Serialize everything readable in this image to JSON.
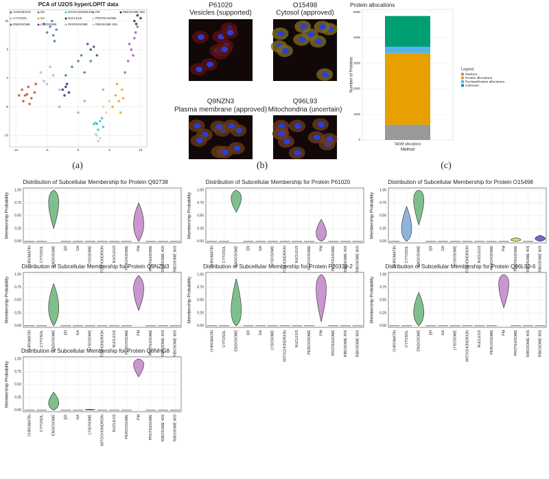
{
  "panel_labels": [
    "(a)",
    "(b)",
    "(c)"
  ],
  "micrographs": [
    {
      "protein": "P61020",
      "location": "Vesicles (supported)"
    },
    {
      "protein": "O15498",
      "location": "Cytosol (approved)"
    },
    {
      "protein": "Q9NZN3",
      "location": "Plasma membrane (approved)"
    },
    {
      "protein": "Q96L93",
      "location": "Mitochondria (uncertain)"
    }
  ],
  "chart_data": [
    {
      "type": "scatter",
      "title": "PCA of U2OS hyperLOPIT data",
      "xlim": [
        -11,
        11
      ],
      "ylim": [
        -12,
        12
      ],
      "xticks": [
        -10,
        -5,
        0,
        5,
        10
      ],
      "yticks": [
        -10,
        -5,
        0,
        5,
        10
      ],
      "grid": true,
      "series": [
        {
          "name": "CHROMATIN",
          "color": "#c0531e",
          "x": [
            -9,
            -8.5,
            -8,
            -7.5,
            -7,
            -8.8,
            -7.8,
            -6.8,
            -9.5,
            -8.2
          ],
          "y": [
            -2,
            -3,
            -1.5,
            -3.5,
            -2.5,
            -4,
            -4.5,
            -1,
            -3,
            -2.8
          ]
        },
        {
          "name": "CYTOSOL",
          "color": "#9fbbdc",
          "x": [
            -6,
            -5,
            -4,
            -3,
            -5.5,
            -4.5
          ],
          "y": [
            1,
            -1,
            0.5,
            -2,
            -0.5,
            2
          ]
        },
        {
          "name": "ENDOSOME",
          "color": "#2e8b57",
          "x": [
            -1,
            0,
            1,
            -2,
            0.5,
            2
          ],
          "y": [
            2,
            3,
            1,
            0.5,
            4,
            3
          ]
        },
        {
          "name": "ER",
          "color": "#3b7dbf",
          "x": [
            -5,
            -4.5,
            -4,
            -3.5,
            -5.5,
            -4.2,
            -3.8
          ],
          "y": [
            8,
            9,
            7.5,
            8.5,
            9.5,
            10,
            6.5
          ]
        },
        {
          "name": "GA",
          "color": "#f39c1f",
          "x": [
            6,
            6.5,
            7,
            5.5,
            6.8,
            7.2,
            6.2
          ],
          "y": [
            -3,
            -4,
            -2,
            -5,
            -6,
            -3.5,
            -1
          ]
        },
        {
          "name": "LYSOSOME",
          "color": "#5b3a8c",
          "x": [
            2,
            3,
            1.5,
            2.5
          ],
          "y": [
            5,
            4,
            6,
            5.5
          ]
        },
        {
          "name": "MITOCHONDRION",
          "color": "#2fc4d6",
          "x": [
            3,
            3.5,
            4,
            2.5,
            3.2,
            3.8,
            2.8
          ],
          "y": [
            -8,
            -7.5,
            -8.5,
            -8,
            -9,
            -7,
            -7.8
          ]
        },
        {
          "name": "NUCLEUS",
          "color": "#1f2b8c",
          "x": [
            -2.5,
            -2,
            -1.5,
            -2.2,
            -1.8
          ],
          "y": [
            -2,
            -1.5,
            -2.5,
            -3,
            -1
          ]
        },
        {
          "name": "PEROXISOME",
          "color": "#a8a8a8",
          "x": [
            -3,
            0,
            4,
            1
          ],
          "y": [
            -5,
            -6,
            -2,
            -4
          ]
        },
        {
          "name": "PM",
          "color": "#9b59b6",
          "x": [
            8,
            8.5,
            9,
            9.5,
            7.5,
            8.8,
            9.2,
            8.2
          ],
          "y": [
            3,
            5,
            7,
            9,
            1,
            4,
            8,
            6
          ]
        },
        {
          "name": "PROTEASOME",
          "color": "#f5c98a",
          "x": [
            4,
            5,
            4.5
          ],
          "y": [
            -5,
            -4,
            -6
          ]
        },
        {
          "name": "RIBOSOME 40S",
          "color": "#c8c8c8",
          "x": [
            3,
            3.5,
            2.8,
            3.2
          ],
          "y": [
            -10,
            -10.5,
            -9.8,
            -11
          ]
        },
        {
          "name": "RIBOSOME 60S",
          "color": "#333333",
          "x": [
            9,
            9.5,
            10,
            9.3
          ],
          "y": [
            10,
            11,
            10.5,
            9.5
          ]
        }
      ]
    },
    {
      "type": "stacked-bar",
      "title": "Protein allocations",
      "xlabel": "Method",
      "ylabel": "Number of Proteins",
      "legend_title": "Legend",
      "categories": [
        "TAGM allocations"
      ],
      "ylim": [
        0,
        5100
      ],
      "yticks": [
        0,
        1000,
        2000,
        3000,
        4000,
        5000
      ],
      "series": [
        {
          "name": "Markers",
          "color": "#999999",
          "values": [
            600
          ]
        },
        {
          "name": "Protein allocations",
          "color": "#e8a000",
          "values": [
            2800
          ]
        },
        {
          "name": "Reclassification allocations",
          "color": "#56b4e9",
          "values": [
            250
          ]
        },
        {
          "name": "Unknown",
          "color": "#009e73",
          "values": [
            1200
          ]
        }
      ]
    },
    {
      "type": "violin",
      "title": "Distribution of Subcellular Membership for Protein Q92738",
      "ylabel": "Membership Probability",
      "categories": [
        "CHROMATIN",
        "CYTOSOL",
        "ENDOSOME",
        "ER",
        "GA",
        "LYSOSOME",
        "MITOCHONDRION",
        "NUCLEUS",
        "PEROXISOME",
        "PM",
        "PROTEASOME",
        "RIBOSOME 40S",
        "RIBOSOME 60S"
      ],
      "ylim": [
        -0.03,
        1.04
      ],
      "yticks": [
        {
          "value": 0,
          "label": "0.00"
        },
        {
          "value": 0.25,
          "label": "0.25"
        },
        {
          "value": 0.5,
          "label": "0.50"
        },
        {
          "value": 0.75,
          "label": "0.75"
        },
        {
          "value": 1,
          "label": "1.00"
        }
      ],
      "min": [
        0,
        0,
        0.25,
        0,
        0,
        0,
        0,
        0,
        0,
        0,
        0,
        0,
        0
      ],
      "max": [
        0,
        0,
        1,
        0,
        0,
        0,
        0,
        0,
        0,
        0.75,
        0,
        0,
        0
      ],
      "mode": [
        0,
        0,
        0.9,
        0,
        0,
        0,
        0,
        0,
        0,
        0.3,
        0,
        0,
        0
      ],
      "colors": [
        null,
        null,
        "#7fbf8e",
        null,
        null,
        null,
        null,
        null,
        null,
        "#c996cf",
        null,
        null,
        null
      ]
    },
    {
      "type": "violin",
      "title": "Distribution of Subcellular Membership for Protein P61020",
      "ylabel": "Membership Probability",
      "categories": [
        "CHROMATIN",
        "CYTOSOL",
        "ENDOSOME",
        "ER",
        "GA",
        "LYSOSOME",
        "MITOCHONDRION",
        "NUCLEUS",
        "PEROXISOME",
        "PM",
        "PROTEASOME",
        "RIBOSOME 40S",
        "RIBOSOME 60S"
      ],
      "ylim": [
        -0.03,
        1.04
      ],
      "yticks": [
        {
          "value": 0,
          "label": "0.00"
        },
        {
          "value": 0.25,
          "label": "0.25"
        },
        {
          "value": 0.5,
          "label": "0.50"
        },
        {
          "value": 0.75,
          "label": "0.75"
        },
        {
          "value": 1,
          "label": "1.00"
        }
      ],
      "min": [
        0,
        0,
        0.57,
        0,
        0,
        0,
        0,
        0,
        0,
        0,
        0,
        0,
        0
      ],
      "max": [
        0,
        0,
        1,
        0,
        0,
        0,
        0,
        0,
        0,
        0.43,
        0,
        0,
        0
      ],
      "mode": [
        0,
        0,
        0.9,
        0,
        0,
        0,
        0,
        0,
        0,
        0.1,
        0,
        0,
        0
      ],
      "colors": [
        null,
        null,
        "#7fbf8e",
        null,
        null,
        null,
        null,
        null,
        null,
        "#c996cf",
        null,
        null,
        null
      ]
    },
    {
      "type": "violin",
      "title": "Distribution of Subcellular Membership for Protein O15498",
      "ylabel": "Membership Probability",
      "categories": [
        "CHROMATIN",
        "CYTOSOL",
        "ENDOSOME",
        "ER",
        "GA",
        "LYSOSOME",
        "MITOCHONDRION",
        "NUCLEUS",
        "PEROXISOME",
        "PM",
        "PROTEASOME",
        "RIBOSOME 40S",
        "RIBOSOME 60S"
      ],
      "ylim": [
        -0.03,
        1.04
      ],
      "yticks": [
        {
          "value": 0,
          "label": "0.00"
        },
        {
          "value": 0.25,
          "label": "0.25"
        },
        {
          "value": 0.5,
          "label": "0.50"
        },
        {
          "value": 0.75,
          "label": "0.75"
        },
        {
          "value": 1,
          "label": "1.00"
        }
      ],
      "min": [
        0,
        0,
        0.32,
        0,
        0,
        0,
        0,
        0,
        0,
        0,
        0,
        0,
        0
      ],
      "max": [
        0,
        0.68,
        1,
        0,
        0,
        0,
        0,
        0,
        0,
        0,
        0.07,
        0,
        0.12
      ],
      "mode": [
        0,
        0.15,
        0.95,
        0,
        0,
        0,
        0,
        0,
        0,
        0,
        0.03,
        0,
        0.05
      ],
      "colors": [
        null,
        "#8fb4dc",
        "#7fbf8e",
        null,
        null,
        null,
        null,
        null,
        null,
        null,
        "#cde36f",
        null,
        "#6c6cc4"
      ]
    },
    {
      "type": "violin",
      "title": "Distribution of Subcellular Membership for Protein Q9NZN3",
      "ylabel": "Membership Probability",
      "categories": [
        "CHROMATIN",
        "CYTOSOL",
        "ENDOSOME",
        "ER",
        "GA",
        "LYSOSOME",
        "MITOCHONDRION",
        "NUCLEUS",
        "PEROXISOME",
        "PM",
        "PROTEASOME",
        "RIBOSOME 40S",
        "RIBOSOME 60S"
      ],
      "ylim": [
        -0.03,
        1.04
      ],
      "yticks": [
        {
          "value": 0,
          "label": "0.00"
        },
        {
          "value": 0.25,
          "label": "0.25"
        },
        {
          "value": 0.5,
          "label": "0.50"
        },
        {
          "value": 0.75,
          "label": "0.75"
        },
        {
          "value": 1,
          "label": "1.00"
        }
      ],
      "min": [
        0,
        0,
        0,
        0,
        0,
        0,
        0,
        0,
        0,
        0.3,
        0,
        0,
        0
      ],
      "max": [
        0,
        0,
        0.82,
        0,
        0,
        0,
        0,
        0,
        0,
        0.98,
        0,
        0,
        0
      ],
      "mode": [
        0,
        0,
        0.3,
        0,
        0,
        0,
        0,
        0,
        0,
        0.8,
        0,
        0,
        0
      ],
      "colors": [
        null,
        null,
        "#7fbf8e",
        null,
        null,
        null,
        null,
        null,
        null,
        "#c996cf",
        null,
        null,
        null
      ]
    },
    {
      "type": "violin",
      "title": "Distribution of Subcellular Membership for Protein P20339-2",
      "ylabel": "Membership Probability",
      "categories": [
        "CHROMATIN",
        "CYTOSOL",
        "ENDOSOME",
        "ER",
        "GA",
        "LYSOSOME",
        "MITOCHONDRION",
        "NUCLEUS",
        "PEROXISOME",
        "PM",
        "PROTEASOME",
        "RIBOSOME 40S",
        "RIBOSOME 60S"
      ],
      "ylim": [
        -0.03,
        1.04
      ],
      "yticks": [
        {
          "value": 0,
          "label": "0.00"
        },
        {
          "value": 0.25,
          "label": "0.25"
        },
        {
          "value": 0.5,
          "label": "0.50"
        },
        {
          "value": 0.75,
          "label": "0.75"
        },
        {
          "value": 1,
          "label": "1.00"
        }
      ],
      "min": [
        0,
        0,
        0,
        0,
        0,
        0,
        0,
        0,
        0,
        0.08,
        0,
        0,
        0
      ],
      "max": [
        0,
        0,
        0.92,
        0,
        0,
        0,
        0,
        0,
        0,
        1,
        0,
        0,
        0
      ],
      "mode": [
        0,
        0,
        0.15,
        0,
        0,
        0,
        0,
        0,
        0,
        0.9,
        0,
        0,
        0
      ],
      "colors": [
        null,
        null,
        "#7fbf8e",
        null,
        null,
        null,
        null,
        null,
        null,
        "#c996cf",
        null,
        null,
        null
      ]
    },
    {
      "type": "violin",
      "title": "Distribution of Subcellular Membership for Protein Q96L93-6",
      "ylabel": "Membership Probability",
      "categories": [
        "CHROMATIN",
        "CYTOSOL",
        "ENDOSOME",
        "ER",
        "GA",
        "LYSOSOME",
        "MITOCHONDRION",
        "NUCLEUS",
        "PEROXISOME",
        "PM",
        "PROTEASOME",
        "RIBOSOME 40S",
        "RIBOSOME 60S"
      ],
      "ylim": [
        -0.03,
        1.04
      ],
      "yticks": [
        {
          "value": 0,
          "label": "0.00"
        },
        {
          "value": 0.25,
          "label": "0.25"
        },
        {
          "value": 0.5,
          "label": "0.50"
        },
        {
          "value": 0.75,
          "label": "0.75"
        },
        {
          "value": 1,
          "label": "1.00"
        }
      ],
      "min": [
        0,
        0,
        0,
        0,
        0,
        0,
        0,
        0,
        0,
        0.35,
        0,
        0,
        0
      ],
      "max": [
        0,
        0,
        0.65,
        0,
        0,
        0,
        0,
        0,
        0,
        1,
        0,
        0,
        0
      ],
      "mode": [
        0,
        0,
        0.2,
        0,
        0,
        0,
        0,
        0,
        0,
        0.95,
        0,
        0,
        0
      ],
      "colors": [
        null,
        null,
        "#7fbf8e",
        null,
        null,
        null,
        null,
        null,
        null,
        "#c996cf",
        null,
        null,
        null
      ]
    },
    {
      "type": "violin",
      "title": "Distribution of Subcellular Membership for Protein Q8NHG8",
      "ylabel": "Membership Probability",
      "categories": [
        "CHROMATIN",
        "CYTOSOL",
        "ENDOSOME",
        "ER",
        "GA",
        "LYSOSOME",
        "MITOCHONDRION",
        "NUCLEUS",
        "PEROXISOME",
        "PM",
        "PROTEASOME",
        "RIBOSOME 40S",
        "RIBOSOME 60S"
      ],
      "ylim": [
        -0.03,
        1.04
      ],
      "yticks": [
        {
          "value": 0,
          "label": "0.00"
        },
        {
          "value": 0.25,
          "label": "0.25"
        },
        {
          "value": 0.5,
          "label": "0.50"
        },
        {
          "value": 0.75,
          "label": "0.75"
        },
        {
          "value": 1,
          "label": "1.00"
        }
      ],
      "min": [
        0,
        0,
        0,
        0,
        0,
        0,
        0,
        0,
        0,
        0.65,
        0,
        0,
        0
      ],
      "max": [
        0,
        0,
        0.35,
        0,
        0,
        0.02,
        0,
        0,
        0,
        1,
        0,
        0,
        0
      ],
      "mode": [
        0,
        0,
        0.1,
        0,
        0,
        0.01,
        0,
        0,
        0,
        0.95,
        0,
        0,
        0
      ],
      "colors": [
        null,
        null,
        "#7fbf8e",
        null,
        null,
        "#7fbf8e",
        null,
        null,
        null,
        "#c996cf",
        null,
        null,
        null
      ]
    }
  ]
}
